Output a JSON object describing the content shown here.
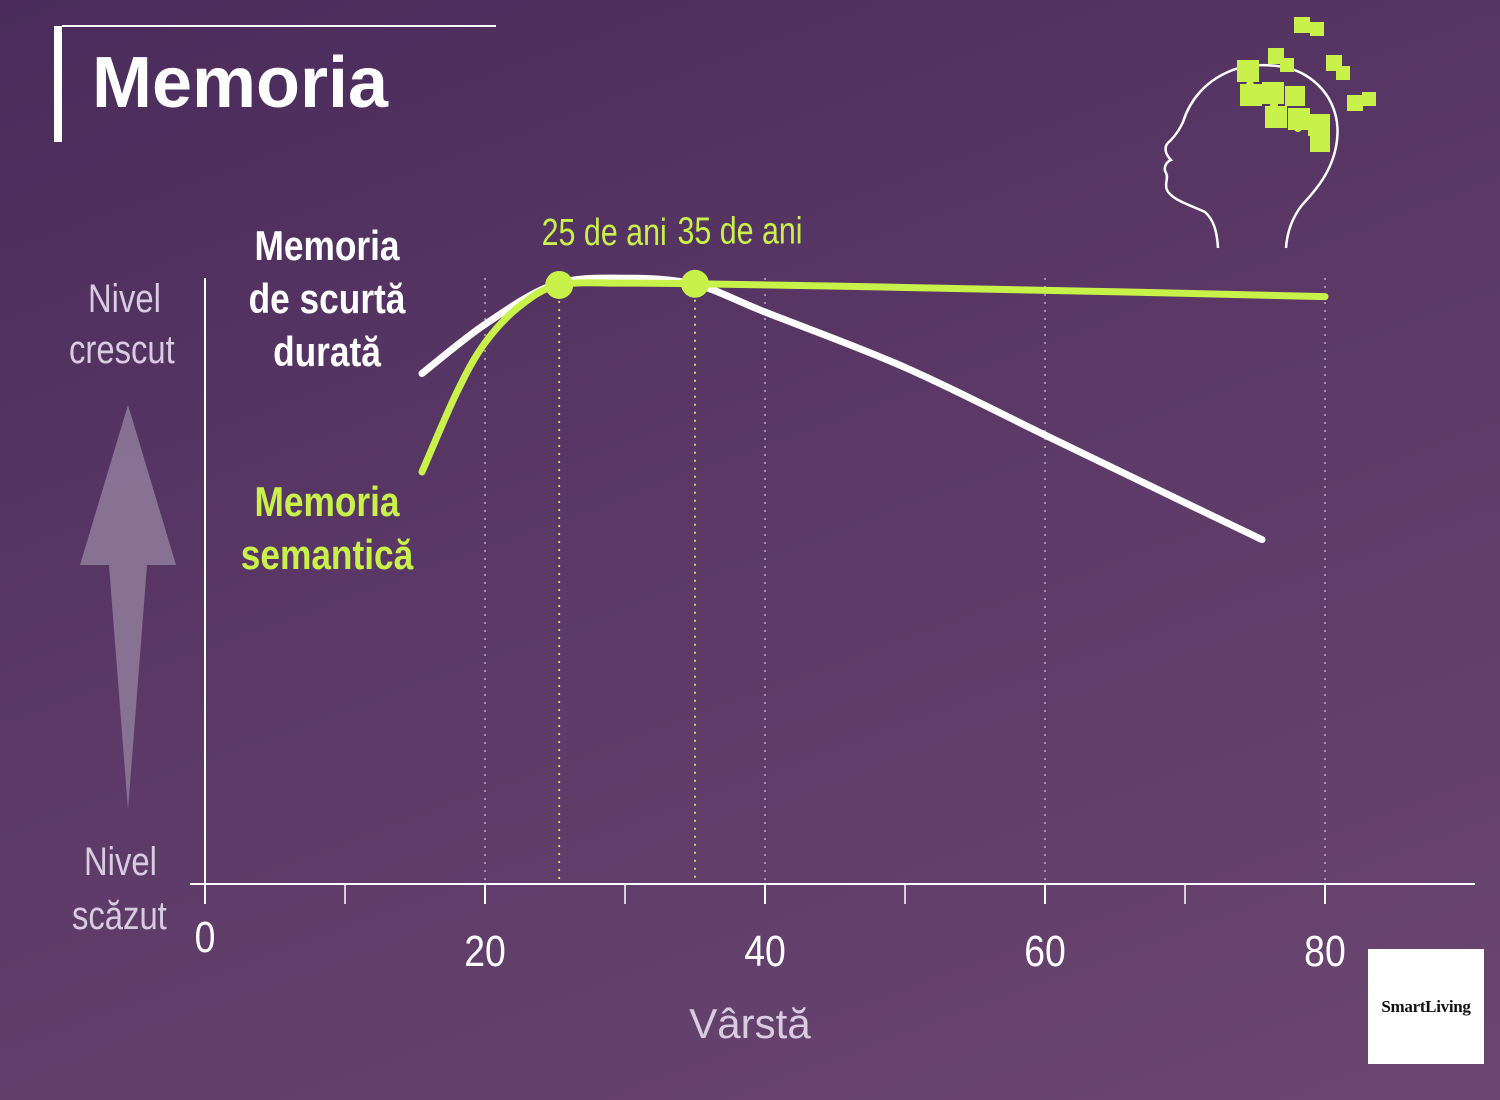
{
  "header": {
    "title": "Memoria"
  },
  "y_axis": {
    "top_label_line1": "Nivel",
    "top_label_line2": "crescut",
    "bottom_label_line1": "Nivel",
    "bottom_label_line2": "scăzut"
  },
  "logo": {
    "text": "SmartLiving"
  },
  "colors": {
    "accent_green": "#c8f24a",
    "short_term_line": "#ffffff",
    "arrow": "#8f7c9c"
  },
  "chart_data": {
    "type": "line",
    "xlabel": "Vârstă",
    "ylabel": "",
    "xlim": [
      0,
      90
    ],
    "ylim": [
      0,
      100
    ],
    "x_ticks": [
      0,
      20,
      40,
      60,
      80
    ],
    "minor_ticks": [
      10,
      30,
      50,
      70
    ],
    "grid": "dotted vertical lines",
    "series": [
      {
        "name": "Memoria de scurtă durată",
        "color": "#ffffff",
        "points": [
          {
            "x": 15.5,
            "y": 83
          },
          {
            "x": 20,
            "y": 91
          },
          {
            "x": 25,
            "y": 97.5
          },
          {
            "x": 30,
            "y": 98.5
          },
          {
            "x": 35,
            "y": 97.5
          },
          {
            "x": 40,
            "y": 93
          },
          {
            "x": 50,
            "y": 84
          },
          {
            "x": 60,
            "y": 73
          },
          {
            "x": 70,
            "y": 62
          },
          {
            "x": 75.5,
            "y": 56
          }
        ]
      },
      {
        "name": "Memoria semantică",
        "color": "#c8f24a",
        "points": [
          {
            "x": 15.5,
            "y": 67
          },
          {
            "x": 18,
            "y": 80
          },
          {
            "x": 20,
            "y": 88
          },
          {
            "x": 22.5,
            "y": 94
          },
          {
            "x": 25.3,
            "y": 97.4
          },
          {
            "x": 30,
            "y": 97.7
          },
          {
            "x": 35,
            "y": 97.6
          },
          {
            "x": 50,
            "y": 97.0
          },
          {
            "x": 65,
            "y": 96.3
          },
          {
            "x": 80,
            "y": 95.5
          }
        ]
      }
    ],
    "annotations": [
      {
        "x": 25.3,
        "y": 97.4,
        "label": "25 de ani"
      },
      {
        "x": 35,
        "y": 97.6,
        "label": "35 de ani"
      }
    ]
  },
  "series_labels": {
    "short_term": [
      "Memoria",
      "de scurtă",
      "durată"
    ],
    "semantic": [
      "Memoria",
      "semantică"
    ]
  }
}
